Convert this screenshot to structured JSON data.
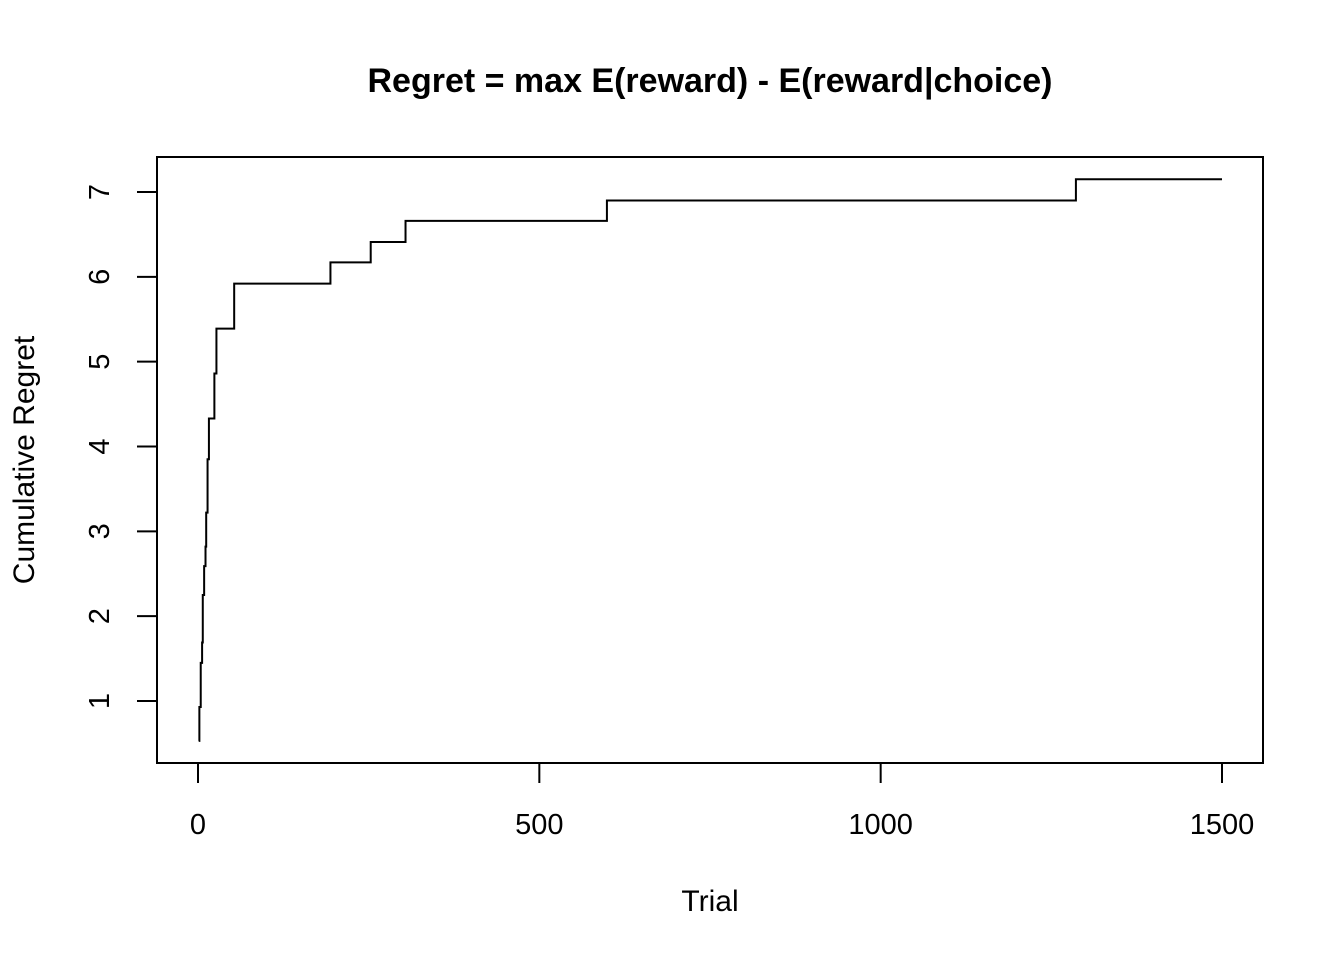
{
  "chart_data": {
    "type": "line",
    "title": "Regret = max E(reward) -  E(reward|choice)",
    "xlabel": "Trial",
    "ylabel": "Cumulative Regret",
    "xlim": [
      0,
      1500
    ],
    "ylim": [
      0.5,
      7.15
    ],
    "xticks": [
      0,
      500,
      1000,
      1500
    ],
    "yticks": [
      1,
      2,
      3,
      4,
      5,
      6,
      7
    ],
    "xtick_labels": [
      "0",
      "500",
      "1000",
      "1500"
    ],
    "ytick_labels": [
      "1",
      "2",
      "3",
      "4",
      "5",
      "6",
      "7"
    ],
    "grid": false,
    "line_color": "#000000",
    "series": [
      {
        "step": true,
        "x": [
          1,
          2,
          4,
          6,
          7,
          9,
          11,
          12,
          14,
          16,
          18,
          20,
          24,
          27,
          53,
          194,
          253,
          304,
          599,
          1286,
          1500
        ],
        "values": [
          0.53,
          0.93,
          1.45,
          1.69,
          2.25,
          2.59,
          2.82,
          3.22,
          3.85,
          4.33,
          4.33,
          4.33,
          4.86,
          5.39,
          5.92,
          6.17,
          6.41,
          6.66,
          6.9,
          7.15,
          7.15
        ]
      }
    ]
  }
}
